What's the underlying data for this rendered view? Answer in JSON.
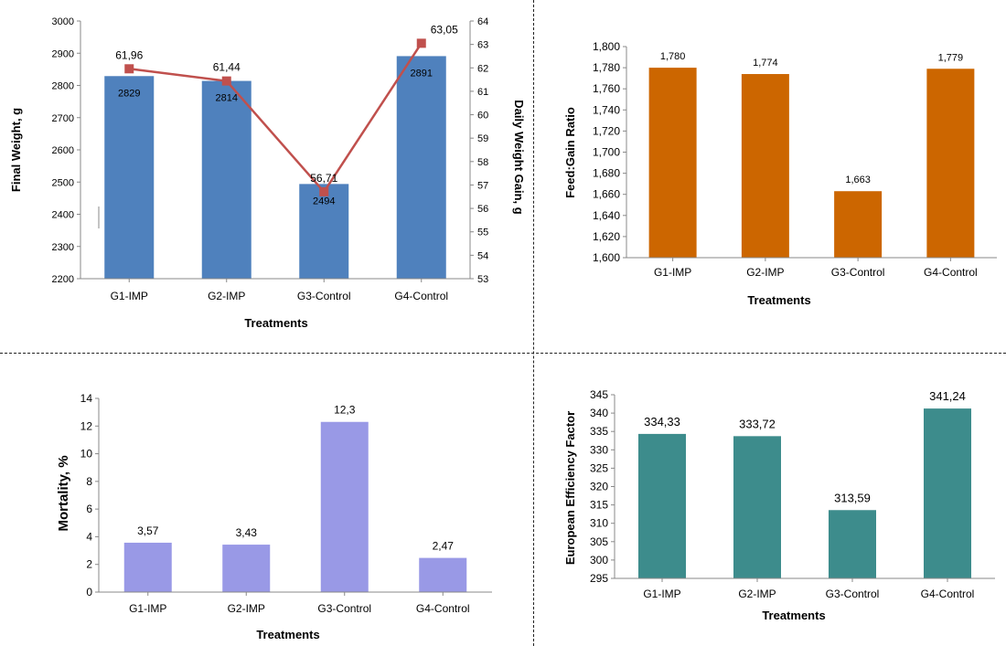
{
  "chart_data": [
    {
      "type": "bar+line",
      "categories": [
        "G1-IMP",
        "G2-IMP",
        "G3-Control",
        "G4-Control"
      ],
      "series": [
        {
          "name": "Final Weight, g",
          "kind": "bar",
          "axis": "left",
          "color": "#4f81bd",
          "values": [
            2829,
            2814,
            2494,
            2891
          ],
          "labels": [
            "2829",
            "2814",
            "2494",
            "2891"
          ]
        },
        {
          "name": "Daily Weight Gain, g",
          "kind": "line",
          "axis": "right",
          "color": "#c0504d",
          "values": [
            61.96,
            61.44,
            56.71,
            63.05
          ],
          "labels": [
            "61,96",
            "61,44",
            "56,71",
            "63,05"
          ]
        }
      ],
      "xlabel": "Treatments",
      "ylabel": "Final Weight, g",
      "y2label": "Daily Weight  Gain, g",
      "ylim": [
        2200,
        3000
      ],
      "y2lim": [
        53,
        64
      ],
      "yticks": [
        "2200",
        "2300",
        "2400",
        "2500",
        "2600",
        "2700",
        "2800",
        "2900",
        "3000"
      ],
      "y2ticks": [
        "53",
        "54",
        "55",
        "56",
        "57",
        "58",
        "59",
        "60",
        "61",
        "62",
        "63",
        "64"
      ]
    },
    {
      "type": "bar",
      "categories": [
        "G1-IMP",
        "G2-IMP",
        "G3-Control",
        "G4-Control"
      ],
      "values": [
        1.78,
        1.774,
        1.663,
        1.779
      ],
      "labels": [
        "1,780",
        "1,774",
        "1,663",
        "1,779"
      ],
      "color": "#cc6600",
      "xlabel": "Treatments",
      "ylabel": "Feed:Gain Ratio",
      "ylim": [
        1.6,
        1.8
      ],
      "yticks": [
        "1,600",
        "1,620",
        "1,640",
        "1,660",
        "1,680",
        "1,700",
        "1,720",
        "1,740",
        "1,760",
        "1,780",
        "1,800"
      ]
    },
    {
      "type": "bar",
      "categories": [
        "G1-IMP",
        "G2-IMP",
        "G3-Control",
        "G4-Control"
      ],
      "values": [
        3.57,
        3.43,
        12.3,
        2.47
      ],
      "labels": [
        "3,57",
        "3,43",
        "12,3",
        "2,47"
      ],
      "color": "#9999e6",
      "xlabel": "Treatments",
      "ylabel": "Mortality, %",
      "ylim": [
        0,
        14
      ],
      "yticks": [
        "0",
        "2",
        "4",
        "6",
        "8",
        "10",
        "12",
        "14"
      ]
    },
    {
      "type": "bar",
      "categories": [
        "G1-IMP",
        "G2-IMP",
        "G3-Control",
        "G4-Control"
      ],
      "values": [
        334.33,
        333.72,
        313.59,
        341.24
      ],
      "labels": [
        "334,33",
        "333,72",
        "313,59",
        "341,24"
      ],
      "color": "#3d8c8c",
      "xlabel": "Treatments",
      "ylabel": "European Efficiency Factor",
      "ylim": [
        295,
        345
      ],
      "yticks": [
        "295",
        "300",
        "305",
        "310",
        "315",
        "320",
        "325",
        "330",
        "335",
        "340",
        "345"
      ]
    }
  ]
}
